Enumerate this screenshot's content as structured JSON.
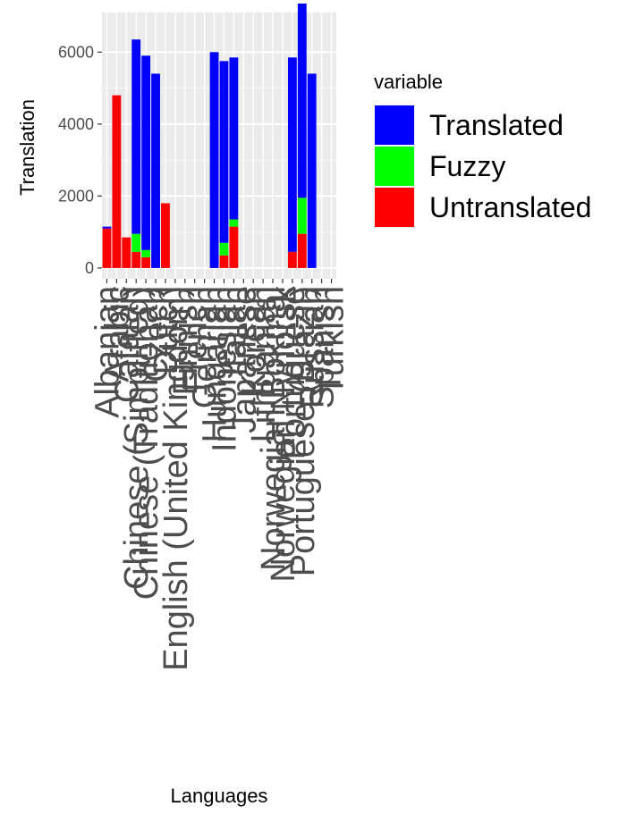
{
  "chart_data": {
    "type": "bar",
    "stacked": true,
    "xlabel": "Languages",
    "ylabel": "Translation",
    "ylim": [
      -300,
      7100
    ],
    "yticks": [
      0,
      2000,
      4000,
      6000
    ],
    "ytick_labels": [
      "0",
      "2000",
      "4000",
      "6000"
    ],
    "grid": true,
    "legend_position": "right",
    "legend_title": "variable",
    "categories": [
      "Albanian",
      "Arabic",
      "Catalan",
      "Chinese (Simplified)",
      "Chinese (Traditional)",
      "Czech",
      "Dutch",
      "English (United Kingdom)",
      "Finnish",
      "French",
      "German",
      "Hungarian",
      "Indonesian",
      "Italian",
      "Japanese",
      "Korean",
      "Lithuanian",
      "Norwegian Bokmål",
      "Norwegian Nynorsk",
      "Portuguese",
      "Portuguese (Brazil)",
      "Russian",
      "Spanish",
      "Turkish"
    ],
    "series": [
      {
        "name": "Translated",
        "color": "#0000ff",
        "values": [
          50,
          0,
          0,
          5400,
          5400,
          5400,
          0,
          0,
          0,
          0,
          0,
          6000,
          5050,
          4500,
          0,
          0,
          0,
          0,
          0,
          5400,
          5400,
          5400,
          0,
          0
        ]
      },
      {
        "name": "Fuzzy",
        "color": "#00ff00",
        "values": [
          0,
          0,
          0,
          500,
          200,
          0,
          0,
          0,
          0,
          0,
          0,
          0,
          350,
          200,
          0,
          0,
          0,
          0,
          0,
          0,
          1000,
          0,
          0,
          0
        ]
      },
      {
        "name": "Untranslated",
        "color": "#ff0000",
        "values": [
          1100,
          4800,
          850,
          450,
          300,
          0,
          1800,
          0,
          0,
          0,
          0,
          0,
          350,
          1150,
          0,
          0,
          0,
          0,
          0,
          450,
          950,
          0,
          0,
          0
        ]
      }
    ]
  }
}
